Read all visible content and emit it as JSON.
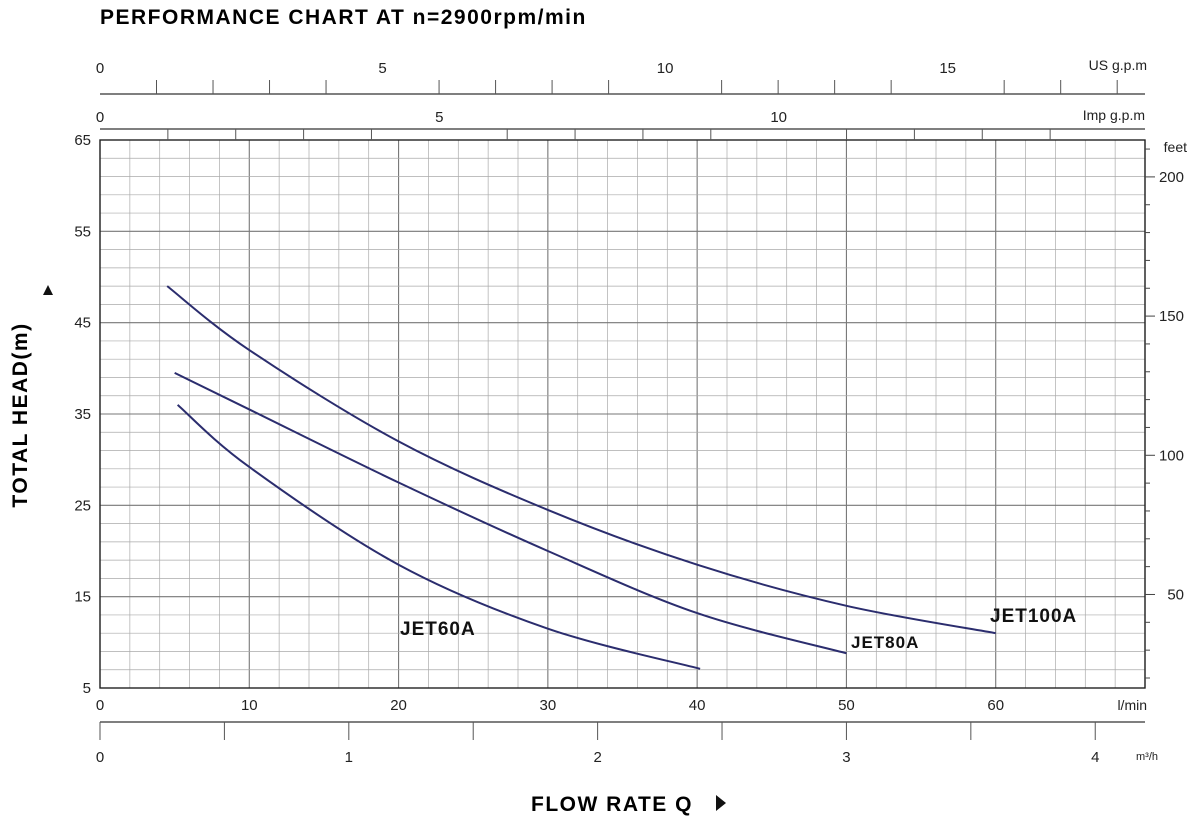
{
  "chart_data": {
    "type": "line",
    "title": "PERFORMANCE CHART AT n=2900rpm/min",
    "xlabel": "FLOW RATE Q",
    "ylabel": "TOTAL HEAD(m)",
    "x_unit": "l/min",
    "y_unit": "m",
    "xlim": [
      0,
      70
    ],
    "ylim": [
      5,
      65
    ],
    "x_ticks": [
      "0",
      "10",
      "20",
      "30",
      "40",
      "50",
      "60"
    ],
    "y_ticks": [
      "5",
      "15",
      "25",
      "35",
      "45",
      "55",
      "65"
    ],
    "secondary_axes": {
      "us_gpm": {
        "unit": "US g.p.m",
        "ticks": [
          "0",
          "5",
          "10",
          "15"
        ]
      },
      "imp_gpm": {
        "unit": "Imp g.p.m",
        "ticks": [
          "0",
          "5",
          "10"
        ]
      },
      "m3h": {
        "unit": "m³/h",
        "ticks": [
          "0",
          "1",
          "2",
          "3",
          "4"
        ]
      },
      "feet": {
        "unit": "feet",
        "ticks": [
          "50",
          "100",
          "150",
          "200"
        ]
      }
    },
    "grid": true,
    "series": [
      {
        "name": "JET100A",
        "color": "#2b2d6e",
        "x": [
          4.5,
          10,
          20,
          30,
          40,
          50,
          60
        ],
        "y": [
          49,
          42,
          32,
          24.5,
          18.5,
          14,
          11
        ]
      },
      {
        "name": "JET80A",
        "color": "#2b2d6e",
        "x": [
          5,
          10,
          20,
          30,
          40,
          50
        ],
        "y": [
          39.5,
          35.5,
          27.5,
          20,
          13.2,
          8.8
        ]
      },
      {
        "name": "JET60A",
        "color": "#2b2d6e",
        "x": [
          5.2,
          10,
          20,
          30,
          40.2
        ],
        "y": [
          36,
          29.2,
          18.5,
          11.5,
          7.1
        ]
      }
    ]
  }
}
